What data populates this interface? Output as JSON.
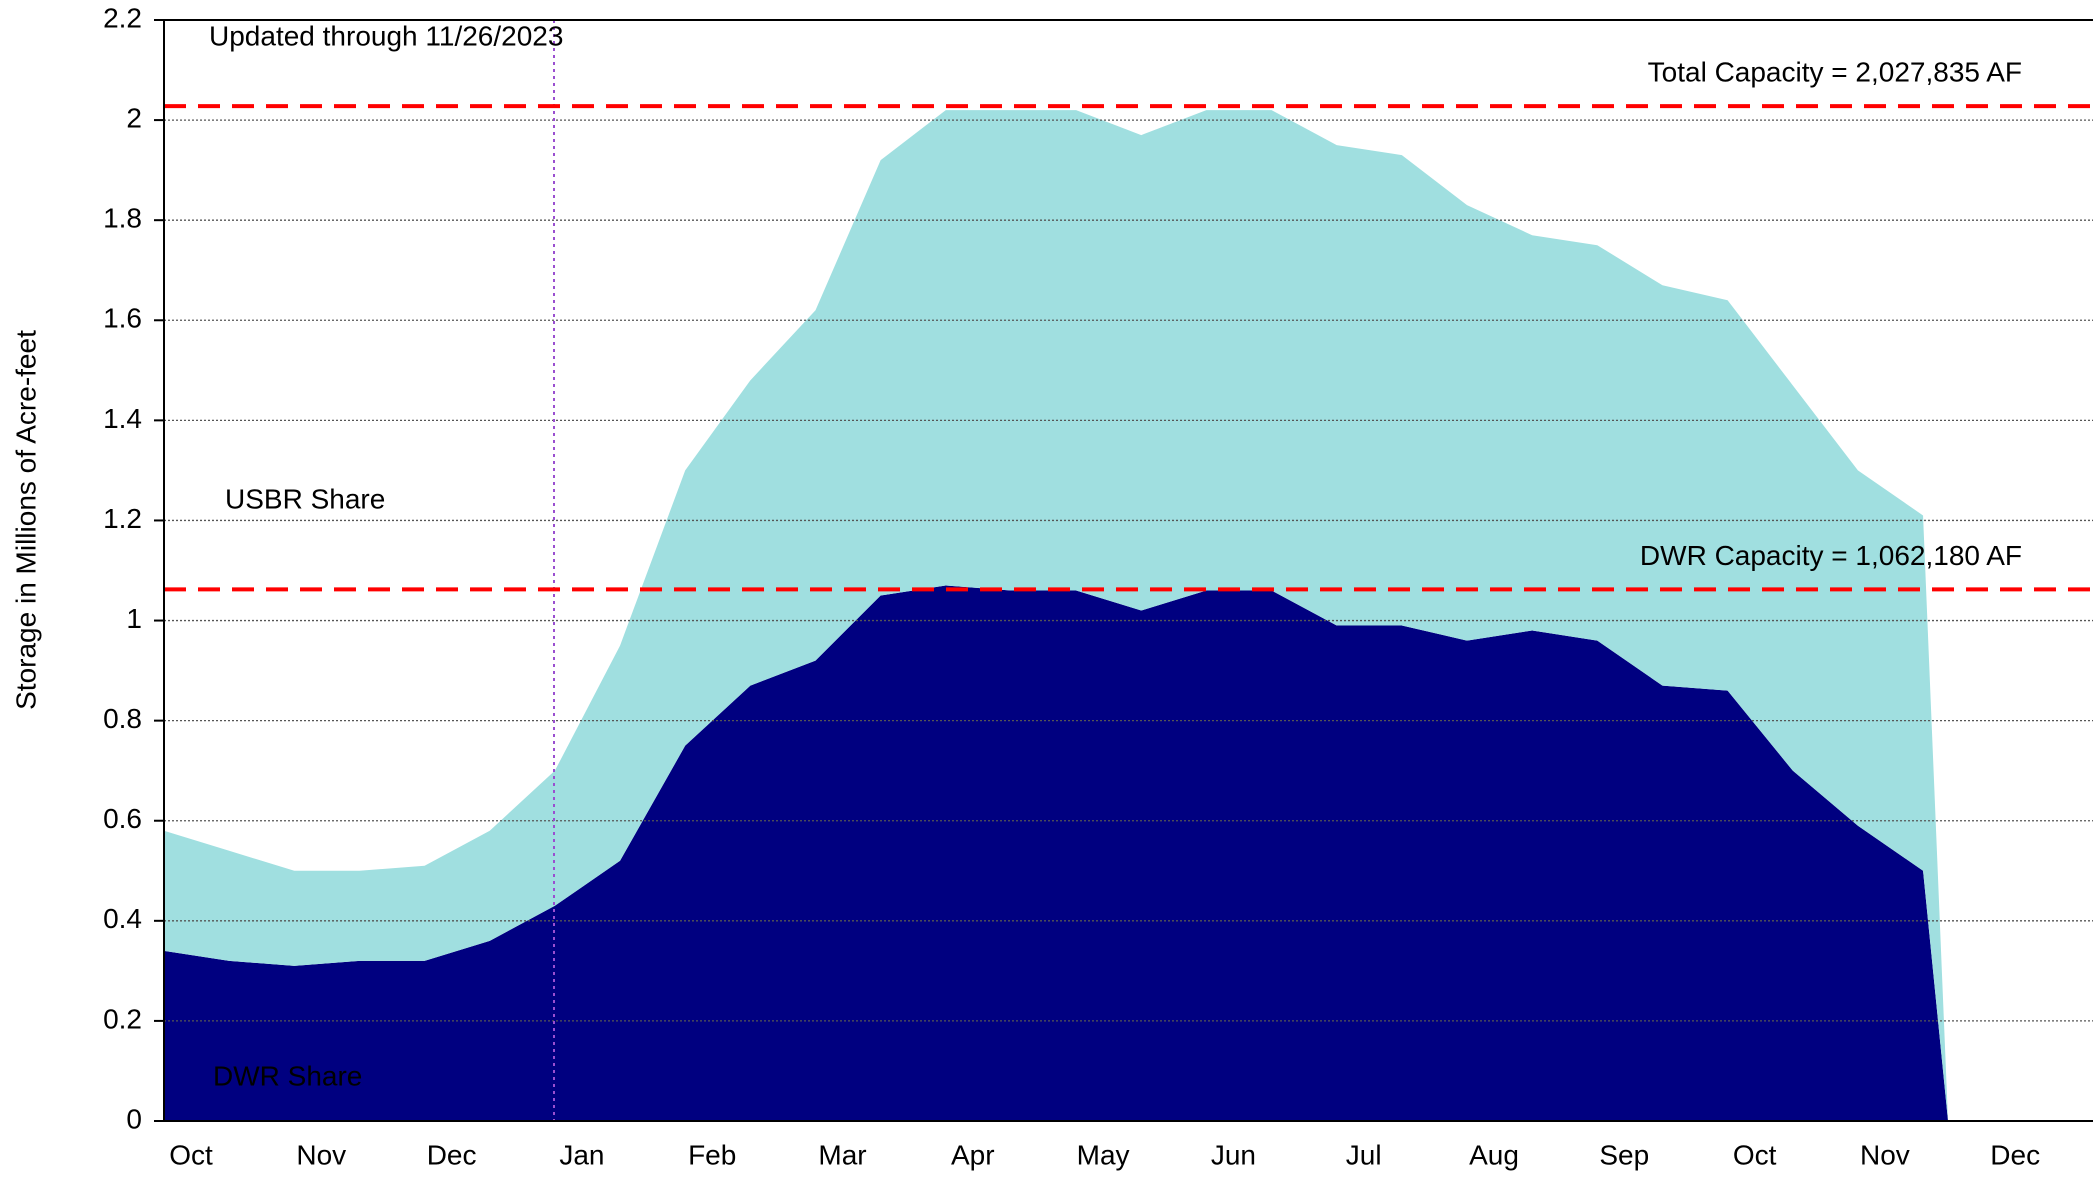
{
  "chart_data": {
    "type": "stacked_area",
    "annotation": "Updated through 11/26/2023",
    "ylabel": "Storage in Millions of Acre-feet",
    "categories": [
      "Oct",
      null,
      "Nov",
      null,
      "Dec",
      null,
      "Jan",
      null,
      "Feb",
      null,
      "Mar",
      null,
      "Apr",
      null,
      "May",
      null,
      "Jun",
      null,
      "Jul",
      null,
      "Aug",
      null,
      "Sep",
      null,
      "Oct",
      null,
      "Nov",
      null,
      "Dec"
    ],
    "series": [
      {
        "name": "DWR Share",
        "color": "#000080",
        "label_color": "#ffffff",
        "values": [
          0.34,
          0.32,
          0.31,
          0.32,
          0.32,
          0.36,
          0.43,
          0.52,
          0.75,
          0.87,
          0.92,
          1.05,
          1.07,
          1.06,
          1.06,
          1.02,
          1.06,
          1.06,
          0.99,
          0.99,
          0.96,
          0.98,
          0.96,
          0.87,
          0.86,
          0.7,
          0.59,
          0.5,
          null
        ]
      },
      {
        "name": "USBR Share",
        "color": "#a0dfe0",
        "label_color": "#000000",
        "values": [
          0.24,
          0.22,
          0.19,
          0.18,
          0.19,
          0.22,
          0.27,
          0.43,
          0.55,
          0.61,
          0.7,
          0.87,
          0.95,
          0.96,
          0.96,
          0.95,
          0.96,
          0.96,
          0.96,
          0.94,
          0.87,
          0.79,
          0.79,
          0.8,
          0.78,
          0.77,
          0.71,
          0.71,
          null
        ]
      }
    ],
    "reference_lines": [
      {
        "value": 2.027835,
        "label": "Total Capacity = 2,027,835 AF",
        "color": "#ff0000"
      },
      {
        "value": 1.06218,
        "label": "DWR Capacity = 1,062,180 AF",
        "color": "#ff0000"
      }
    ],
    "ylim": [
      0,
      2.2
    ],
    "yticks": [
      0,
      0.2,
      0.4,
      0.6,
      0.8,
      1,
      1.2,
      1.4,
      1.6,
      1.8,
      2,
      2.2
    ],
    "grid": true
  }
}
